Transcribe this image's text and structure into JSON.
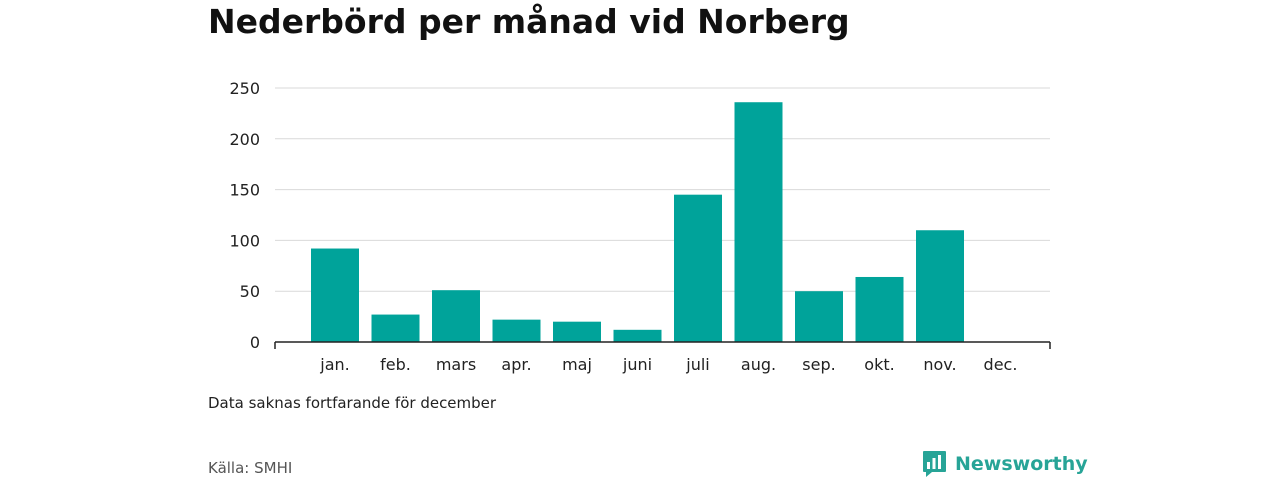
{
  "title": "Nederbörd per månad vid Norberg",
  "note": "Data saknas fortfarande för december",
  "source": "Källa: SMHI",
  "brand": {
    "name": "Newsworthy",
    "icon": "bar-chart-speech-bubble-icon"
  },
  "colors": {
    "bar": "#00a39a",
    "grid": "#d9d9d9",
    "axis": "#222222",
    "brand": "#27a497"
  },
  "chart_data": {
    "type": "bar",
    "categories": [
      "jan.",
      "feb.",
      "mars",
      "apr.",
      "maj",
      "juni",
      "juli",
      "aug.",
      "sep.",
      "okt.",
      "nov.",
      "dec."
    ],
    "values": [
      92,
      27,
      51,
      22,
      20,
      12,
      145,
      236,
      50,
      64,
      110,
      null
    ],
    "ylim": [
      0,
      250
    ],
    "yticks": [
      0,
      50,
      100,
      150,
      200,
      250
    ],
    "xlabel": "",
    "ylabel": "",
    "grid": true
  }
}
